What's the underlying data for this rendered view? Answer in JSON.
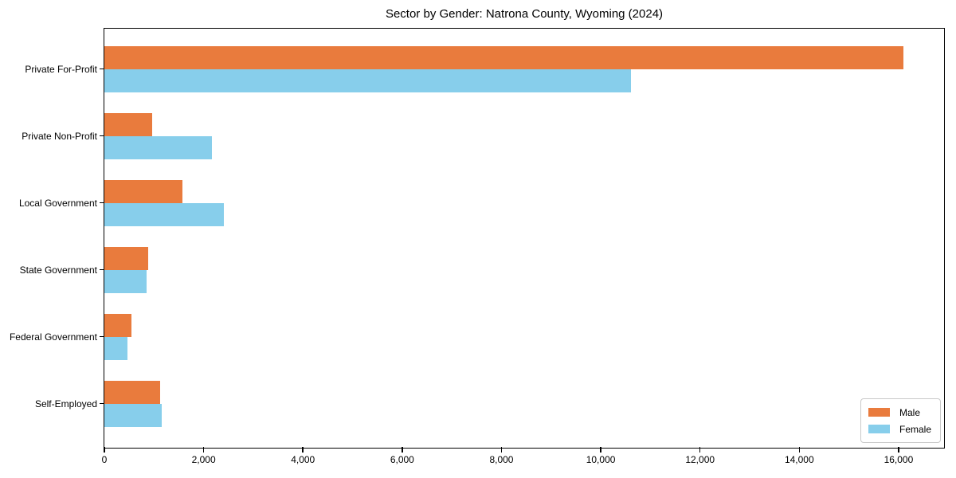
{
  "chart_data": {
    "type": "bar",
    "orientation": "horizontal",
    "title": "Sector by Gender: Natrona County, Wyoming (2024)",
    "categories": [
      "Private For-Profit",
      "Private Non-Profit",
      "Local Government",
      "State Government",
      "Federal Government",
      "Self-Employed"
    ],
    "series": [
      {
        "name": "Male",
        "color": "#E97B3D",
        "values": [
          16090,
          960,
          1565,
          880,
          545,
          1120
        ]
      },
      {
        "name": "Female",
        "color": "#87CEEB",
        "values": [
          10610,
          2160,
          2400,
          850,
          465,
          1150
        ]
      }
    ],
    "xlabel": "",
    "ylabel": "",
    "xlim": [
      0,
      16900
    ],
    "x_ticks": [
      0,
      2000,
      4000,
      6000,
      8000,
      10000,
      12000,
      14000,
      16000
    ],
    "x_tick_labels": [
      "0",
      "2,000",
      "4,000",
      "6,000",
      "8,000",
      "10,000",
      "12,000",
      "14,000",
      "16,000"
    ],
    "grid": false,
    "legend": {
      "position": "lower right"
    }
  }
}
